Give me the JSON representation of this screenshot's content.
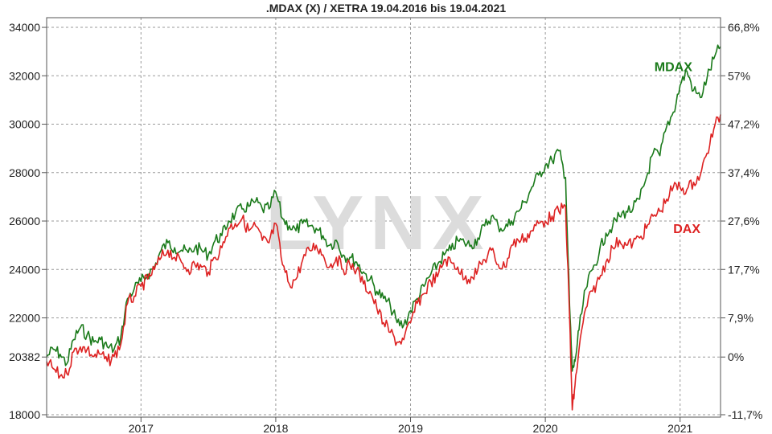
{
  "chart_data": {
    "type": "line",
    "title": ".MDAX (X) / XETRA 19.04.2016 bis 19.04.2021",
    "watermark": "LYNX",
    "xlim": [
      2016.3,
      2021.3
    ],
    "ylim": [
      17900,
      34400
    ],
    "grid": true,
    "x_ticks": [
      {
        "value": 2017,
        "label": "2017"
      },
      {
        "value": 2018,
        "label": "2018"
      },
      {
        "value": 2019,
        "label": "2019"
      },
      {
        "value": 2020,
        "label": "2020"
      },
      {
        "value": 2021,
        "label": "2021"
      }
    ],
    "y_ticks_left": [
      {
        "value": 34000,
        "label": "34000"
      },
      {
        "value": 32000,
        "label": "32000"
      },
      {
        "value": 30000,
        "label": "30000"
      },
      {
        "value": 28000,
        "label": "28000"
      },
      {
        "value": 26000,
        "label": "26000"
      },
      {
        "value": 24000,
        "label": "24000"
      },
      {
        "value": 22000,
        "label": "22000"
      },
      {
        "value": 20382,
        "label": "20382"
      },
      {
        "value": 18000,
        "label": "18000"
      }
    ],
    "y_ticks_right": [
      {
        "value": 34000,
        "label": "66,8%"
      },
      {
        "value": 32000,
        "label": "57%"
      },
      {
        "value": 30000,
        "label": "47,2%"
      },
      {
        "value": 28000,
        "label": "37,4%"
      },
      {
        "value": 26000,
        "label": "27,6%"
      },
      {
        "value": 24000,
        "label": "17,7%"
      },
      {
        "value": 22000,
        "label": "7,9%"
      },
      {
        "value": 20382,
        "label": "0%"
      },
      {
        "value": 18000,
        "label": "-11,7%"
      }
    ],
    "series": [
      {
        "name": "MDAX",
        "color": "#1a7a1a",
        "x": [
          2016.3,
          2016.35,
          2016.4,
          2016.45,
          2016.5,
          2016.55,
          2016.6,
          2016.65,
          2016.7,
          2016.75,
          2016.8,
          2016.85,
          2016.9,
          2016.95,
          2017.0,
          2017.05,
          2017.1,
          2017.15,
          2017.2,
          2017.25,
          2017.3,
          2017.35,
          2017.4,
          2017.45,
          2017.5,
          2017.55,
          2017.6,
          2017.65,
          2017.7,
          2017.75,
          2017.8,
          2017.85,
          2017.9,
          2017.95,
          2018.0,
          2018.05,
          2018.1,
          2018.15,
          2018.2,
          2018.25,
          2018.3,
          2018.35,
          2018.4,
          2018.45,
          2018.5,
          2018.55,
          2018.6,
          2018.65,
          2018.7,
          2018.75,
          2018.8,
          2018.85,
          2018.9,
          2018.95,
          2019.0,
          2019.05,
          2019.1,
          2019.15,
          2019.2,
          2019.25,
          2019.3,
          2019.35,
          2019.4,
          2019.45,
          2019.5,
          2019.55,
          2019.6,
          2019.65,
          2019.7,
          2019.75,
          2019.8,
          2019.85,
          2019.9,
          2019.95,
          2020.0,
          2020.05,
          2020.1,
          2020.15,
          2020.18,
          2020.2,
          2020.22,
          2020.25,
          2020.3,
          2020.35,
          2020.4,
          2020.45,
          2020.5,
          2020.55,
          2020.6,
          2020.65,
          2020.7,
          2020.75,
          2020.8,
          2020.85,
          2020.9,
          2020.95,
          2021.0,
          2021.05,
          2021.1,
          2021.15,
          2021.2,
          2021.25,
          2021.3
        ],
        "values": [
          20400,
          20700,
          20500,
          20100,
          21100,
          21600,
          21300,
          21000,
          21100,
          20800,
          20700,
          21200,
          22800,
          23200,
          23500,
          23800,
          24100,
          24800,
          25100,
          24900,
          24800,
          24700,
          24900,
          24800,
          24600,
          25200,
          25400,
          26000,
          26300,
          26500,
          26600,
          26800,
          26500,
          26500,
          27200,
          26100,
          25800,
          25600,
          25900,
          25800,
          25700,
          25400,
          25000,
          25200,
          24600,
          24500,
          24300,
          23900,
          23600,
          23100,
          22800,
          22500,
          21800,
          21700,
          22300,
          22800,
          23300,
          23800,
          24200,
          24600,
          24800,
          25200,
          25100,
          25000,
          25300,
          25800,
          26200,
          25800,
          25700,
          26000,
          26400,
          26800,
          27400,
          27900,
          28300,
          28500,
          28900,
          27800,
          22500,
          19800,
          20200,
          21500,
          23200,
          24000,
          24700,
          25500,
          25800,
          26200,
          26400,
          26500,
          26900,
          27800,
          28800,
          28700,
          29900,
          30500,
          31600,
          32200,
          31400,
          31100,
          31900,
          32700,
          33200
        ]
      },
      {
        "name": "DAX",
        "color": "#dd2222",
        "x": [
          2016.3,
          2016.35,
          2016.4,
          2016.45,
          2016.5,
          2016.55,
          2016.6,
          2016.65,
          2016.7,
          2016.75,
          2016.8,
          2016.85,
          2016.9,
          2016.95,
          2017.0,
          2017.05,
          2017.1,
          2017.15,
          2017.2,
          2017.25,
          2017.3,
          2017.35,
          2017.4,
          2017.45,
          2017.5,
          2017.55,
          2017.6,
          2017.65,
          2017.7,
          2017.75,
          2017.8,
          2017.85,
          2017.9,
          2017.95,
          2018.0,
          2018.05,
          2018.1,
          2018.15,
          2018.2,
          2018.25,
          2018.3,
          2018.35,
          2018.4,
          2018.45,
          2018.5,
          2018.55,
          2018.6,
          2018.65,
          2018.7,
          2018.75,
          2018.8,
          2018.85,
          2018.9,
          2018.95,
          2019.0,
          2019.05,
          2019.1,
          2019.15,
          2019.2,
          2019.25,
          2019.3,
          2019.35,
          2019.4,
          2019.45,
          2019.5,
          2019.55,
          2019.6,
          2019.65,
          2019.7,
          2019.75,
          2019.8,
          2019.85,
          2019.9,
          2019.95,
          2020.0,
          2020.05,
          2020.1,
          2020.15,
          2020.18,
          2020.2,
          2020.22,
          2020.25,
          2020.3,
          2020.35,
          2020.4,
          2020.45,
          2020.5,
          2020.55,
          2020.6,
          2020.65,
          2020.7,
          2020.75,
          2020.8,
          2020.85,
          2020.9,
          2020.95,
          2021.0,
          2021.05,
          2021.1,
          2021.15,
          2021.2,
          2021.25,
          2021.3
        ],
        "values": [
          20200,
          19900,
          19600,
          19700,
          20600,
          20800,
          20700,
          20400,
          20500,
          20200,
          20400,
          20900,
          22600,
          22900,
          23300,
          23600,
          24000,
          24500,
          24800,
          24500,
          24300,
          24000,
          24200,
          24100,
          23900,
          24500,
          24900,
          25700,
          25900,
          26100,
          25600,
          25800,
          25200,
          25100,
          25900,
          24200,
          23400,
          23600,
          24400,
          24800,
          25000,
          24600,
          24100,
          24500,
          24000,
          24200,
          24000,
          23400,
          23100,
          22400,
          21800,
          21400,
          21000,
          21100,
          21800,
          22600,
          23000,
          23500,
          23700,
          24400,
          24300,
          24100,
          23600,
          23700,
          24000,
          24400,
          24800,
          24200,
          24100,
          25000,
          25200,
          25300,
          25600,
          25900,
          26000,
          26200,
          26400,
          26600,
          22000,
          18200,
          19200,
          20700,
          22400,
          23100,
          23600,
          24300,
          24900,
          25200,
          25000,
          25100,
          25300,
          25700,
          26200,
          26400,
          26900,
          27400,
          27400,
          27300,
          27600,
          27900,
          28800,
          29800,
          30400
        ]
      }
    ],
    "annotations": [
      {
        "text": "MDAX",
        "x": 2020.95,
        "y": 32200,
        "color": "#1a7a1a"
      },
      {
        "text": "DAX",
        "x": 2021.05,
        "y": 25500,
        "color": "#dd2222"
      }
    ]
  }
}
